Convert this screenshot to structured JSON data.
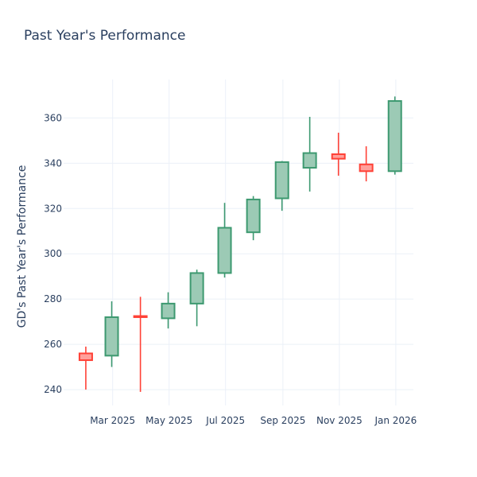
{
  "chart_data": {
    "type": "candlestick",
    "title": "Past Year's Performance",
    "xlabel": "",
    "ylabel": "GD's Past Year's Performance",
    "ylim": [
      233,
      377
    ],
    "yticks": [
      240,
      260,
      280,
      300,
      320,
      340,
      360
    ],
    "xlim": [
      "2025-01-07",
      "2026-01-20"
    ],
    "xticks": [
      {
        "date": "2025-03-01",
        "label": "Mar 2025"
      },
      {
        "date": "2025-05-01",
        "label": "May 2025"
      },
      {
        "date": "2025-07-01",
        "label": "Jul 2025"
      },
      {
        "date": "2025-09-01",
        "label": "Sep 2025"
      },
      {
        "date": "2025-11-01",
        "label": "Nov 2025"
      },
      {
        "date": "2026-01-01",
        "label": "Jan 2026"
      }
    ],
    "grid": true,
    "colors": {
      "increasing_line": "#3d9970",
      "increasing_fill": "#9ccab5",
      "decreasing_line": "#ff4136",
      "decreasing_fill": "#ffa09b"
    },
    "candles": [
      {
        "date": "2025-01-31",
        "open": 256,
        "high": 259,
        "low": 240,
        "close": 253
      },
      {
        "date": "2025-02-28",
        "open": 255,
        "high": 279,
        "low": 250,
        "close": 272
      },
      {
        "date": "2025-03-31",
        "open": 272.5,
        "high": 281,
        "low": 239,
        "close": 272
      },
      {
        "date": "2025-04-30",
        "open": 271.5,
        "high": 283,
        "low": 267,
        "close": 278
      },
      {
        "date": "2025-05-31",
        "open": 278,
        "high": 293,
        "low": 268,
        "close": 291.5
      },
      {
        "date": "2025-06-30",
        "open": 291.5,
        "high": 322.5,
        "low": 289.5,
        "close": 311.5
      },
      {
        "date": "2025-07-31",
        "open": 309.5,
        "high": 325.5,
        "low": 306,
        "close": 324
      },
      {
        "date": "2025-08-31",
        "open": 324.5,
        "high": 341,
        "low": 319,
        "close": 340.5
      },
      {
        "date": "2025-09-30",
        "open": 338,
        "high": 360.5,
        "low": 327.5,
        "close": 344.5
      },
      {
        "date": "2025-10-31",
        "open": 344,
        "high": 353.5,
        "low": 334.5,
        "close": 342
      },
      {
        "date": "2025-11-30",
        "open": 339.5,
        "high": 347.5,
        "low": 332,
        "close": 336.5
      },
      {
        "date": "2025-12-31",
        "open": 336.5,
        "high": 369.5,
        "low": 335,
        "close": 367.5
      }
    ]
  }
}
